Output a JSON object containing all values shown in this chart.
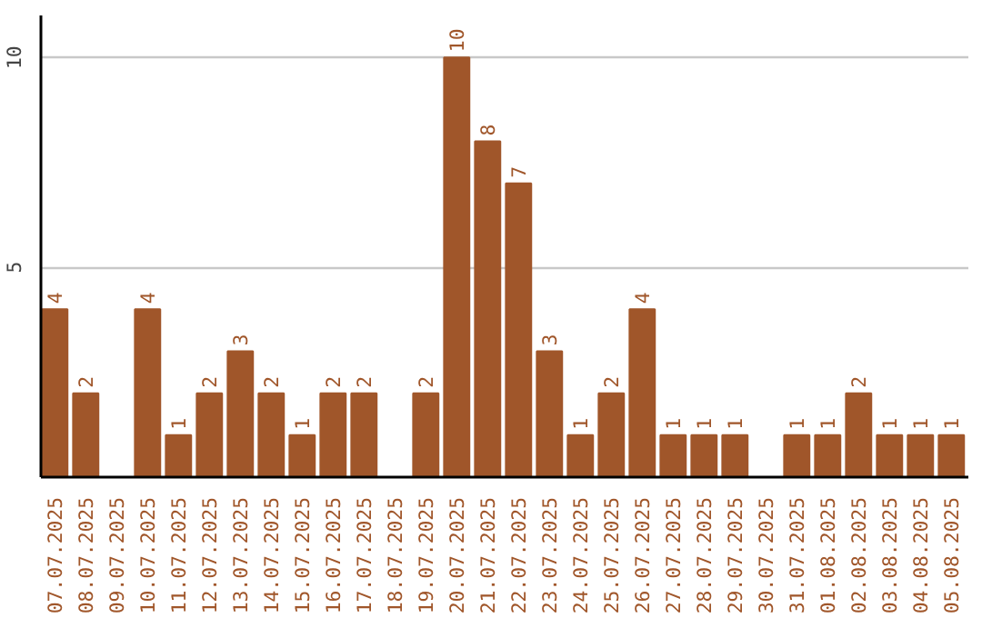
{
  "chart_data": {
    "type": "bar",
    "categories": [
      "07.07.2025",
      "08.07.2025",
      "09.07.2025",
      "10.07.2025",
      "11.07.2025",
      "12.07.2025",
      "13.07.2025",
      "14.07.2025",
      "15.07.2025",
      "16.07.2025",
      "17.07.2025",
      "18.07.2025",
      "19.07.2025",
      "20.07.2025",
      "21.07.2025",
      "22.07.2025",
      "23.07.2025",
      "24.07.2025",
      "25.07.2025",
      "26.07.2025",
      "27.07.2025",
      "28.07.2025",
      "29.07.2025",
      "30.07.2025",
      "31.07.2025",
      "01.08.2025",
      "02.08.2025",
      "03.08.2025",
      "04.08.2025",
      "05.08.2025"
    ],
    "values": [
      4,
      2,
      0,
      4,
      1,
      2,
      3,
      2,
      1,
      2,
      2,
      0,
      2,
      10,
      8,
      7,
      3,
      1,
      2,
      4,
      1,
      1,
      1,
      0,
      1,
      1,
      2,
      1,
      1,
      1
    ],
    "value_labels": [
      "4",
      "2",
      null,
      "4",
      "1",
      "2",
      "3",
      "2",
      "1",
      "2",
      "2",
      null,
      "2",
      "10",
      "8",
      "7",
      "3",
      "1",
      "2",
      "4",
      "1",
      "1",
      "1",
      null,
      "1",
      "1",
      "2",
      "1",
      "1",
      "1"
    ],
    "color": "#a0562a",
    "ylim": [
      0,
      11
    ],
    "yticks": [
      5,
      10
    ],
    "grid": "y"
  }
}
